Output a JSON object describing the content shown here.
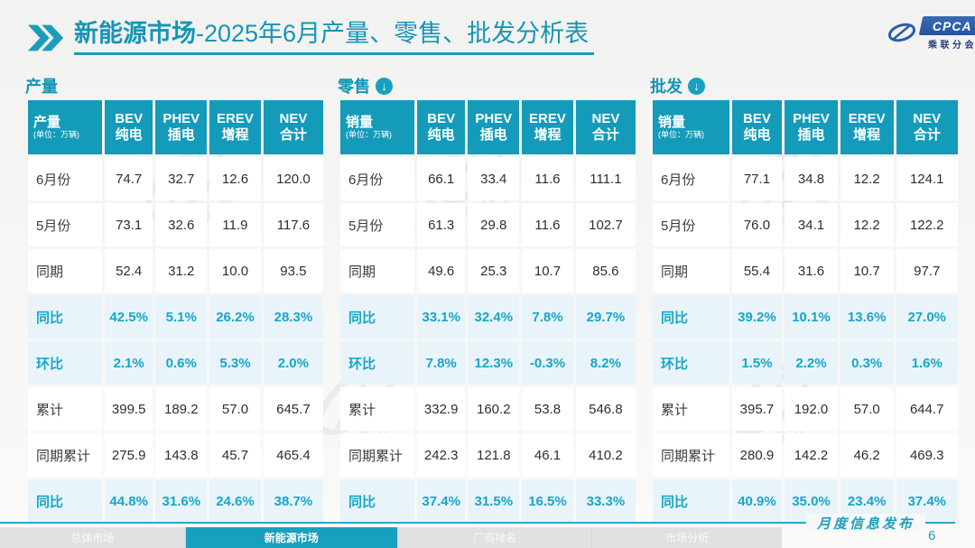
{
  "header": {
    "title_bold": "新能源市场",
    "title_rest": "-2025年6月产量、零售、批发分析表",
    "logo": {
      "acronym": "CPCA",
      "name": "乘联分会"
    }
  },
  "sections": [
    {
      "title": "产量",
      "has_down_icon": false,
      "first_col": {
        "label": "产量",
        "unit": "(单位：万辆)"
      },
      "columns": [
        {
          "en": "BEV",
          "zh": "纯电"
        },
        {
          "en": "PHEV",
          "zh": "插电"
        },
        {
          "en": "EREV",
          "zh": "增程"
        },
        {
          "en": "NEV",
          "zh": "合计"
        }
      ],
      "rows": [
        {
          "label": "6月份",
          "values": [
            "74.7",
            "32.7",
            "12.6",
            "120.0"
          ],
          "highlight": false
        },
        {
          "label": "5月份",
          "values": [
            "73.1",
            "32.6",
            "11.9",
            "117.6"
          ],
          "highlight": false
        },
        {
          "label": "同期",
          "values": [
            "52.4",
            "31.2",
            "10.0",
            "93.5"
          ],
          "highlight": false
        },
        {
          "label": "同比",
          "values": [
            "42.5%",
            "5.1%",
            "26.2%",
            "28.3%"
          ],
          "highlight": true
        },
        {
          "label": "环比",
          "values": [
            "2.1%",
            "0.6%",
            "5.3%",
            "2.0%"
          ],
          "highlight": true
        },
        {
          "label": "累计",
          "values": [
            "399.5",
            "189.2",
            "57.0",
            "645.7"
          ],
          "highlight": false
        },
        {
          "label": "同期累计",
          "values": [
            "275.9",
            "143.8",
            "45.7",
            "465.4"
          ],
          "highlight": false
        },
        {
          "label": "同比",
          "values": [
            "44.8%",
            "31.6%",
            "24.6%",
            "38.7%"
          ],
          "highlight": true
        }
      ]
    },
    {
      "title": "零售",
      "has_down_icon": true,
      "first_col": {
        "label": "销量",
        "unit": "(单位：万辆)"
      },
      "columns": [
        {
          "en": "BEV",
          "zh": "纯电"
        },
        {
          "en": "PHEV",
          "zh": "插电"
        },
        {
          "en": "EREV",
          "zh": "增程"
        },
        {
          "en": "NEV",
          "zh": "合计"
        }
      ],
      "rows": [
        {
          "label": "6月份",
          "values": [
            "66.1",
            "33.4",
            "11.6",
            "111.1"
          ],
          "highlight": false
        },
        {
          "label": "5月份",
          "values": [
            "61.3",
            "29.8",
            "11.6",
            "102.7"
          ],
          "highlight": false
        },
        {
          "label": "同期",
          "values": [
            "49.6",
            "25.3",
            "10.7",
            "85.6"
          ],
          "highlight": false
        },
        {
          "label": "同比",
          "values": [
            "33.1%",
            "32.4%",
            "7.8%",
            "29.7%"
          ],
          "highlight": true
        },
        {
          "label": "环比",
          "values": [
            "7.8%",
            "12.3%",
            "-0.3%",
            "8.2%"
          ],
          "highlight": true
        },
        {
          "label": "累计",
          "values": [
            "332.9",
            "160.2",
            "53.8",
            "546.8"
          ],
          "highlight": false
        },
        {
          "label": "同期累计",
          "values": [
            "242.3",
            "121.8",
            "46.1",
            "410.2"
          ],
          "highlight": false
        },
        {
          "label": "同比",
          "values": [
            "37.4%",
            "31.5%",
            "16.5%",
            "33.3%"
          ],
          "highlight": true
        }
      ]
    },
    {
      "title": "批发",
      "has_down_icon": true,
      "first_col": {
        "label": "销量",
        "unit": "(单位：万辆)"
      },
      "columns": [
        {
          "en": "BEV",
          "zh": "纯电"
        },
        {
          "en": "PHEV",
          "zh": "插电"
        },
        {
          "en": "EREV",
          "zh": "增程"
        },
        {
          "en": "NEV",
          "zh": "合计"
        }
      ],
      "rows": [
        {
          "label": "6月份",
          "values": [
            "77.1",
            "34.8",
            "12.2",
            "124.1"
          ],
          "highlight": false
        },
        {
          "label": "5月份",
          "values": [
            "76.0",
            "34.1",
            "12.2",
            "122.2"
          ],
          "highlight": false
        },
        {
          "label": "同期",
          "values": [
            "55.4",
            "31.6",
            "10.7",
            "97.7"
          ],
          "highlight": false
        },
        {
          "label": "同比",
          "values": [
            "39.2%",
            "10.1%",
            "13.6%",
            "27.0%"
          ],
          "highlight": true
        },
        {
          "label": "环比",
          "values": [
            "1.5%",
            "2.2%",
            "0.3%",
            "1.6%"
          ],
          "highlight": true
        },
        {
          "label": "累计",
          "values": [
            "395.7",
            "192.0",
            "57.0",
            "644.7"
          ],
          "highlight": false
        },
        {
          "label": "同期累计",
          "values": [
            "280.9",
            "142.2",
            "46.2",
            "469.3"
          ],
          "highlight": false
        },
        {
          "label": "同比",
          "values": [
            "40.9%",
            "35.0%",
            "23.4%",
            "37.4%"
          ],
          "highlight": true
        }
      ]
    }
  ],
  "footer": {
    "tabs": [
      {
        "label": "总体市场",
        "active": false
      },
      {
        "label": "新能源市场",
        "active": true
      },
      {
        "label": "厂商排名",
        "active": false
      },
      {
        "label": "市场分析",
        "active": false
      }
    ],
    "stamp": "月度信息发布",
    "page": "6"
  },
  "watermark": {
    "name": "乘联分会"
  },
  "colors": {
    "teal_header": "#149bba",
    "teal_title": "#1695b6",
    "teal_accent": "#18a6c9",
    "highlight_row_bg": "#e8f4fa",
    "logo_blue": "#2a5caa",
    "tabstrip_bg": "#e0e1e0"
  }
}
